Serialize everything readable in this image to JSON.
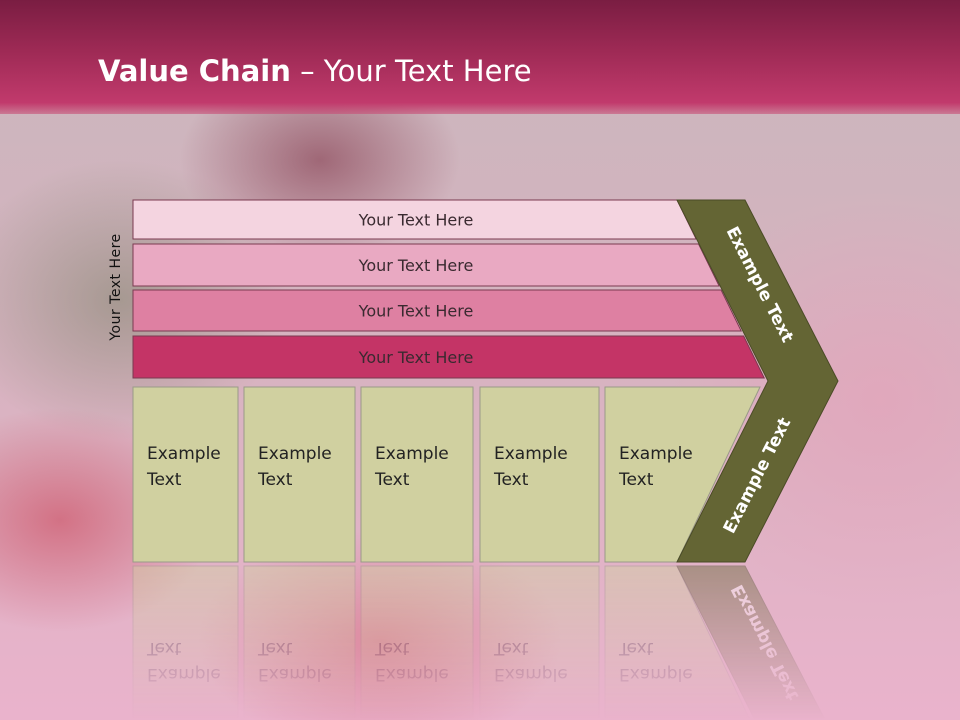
{
  "slide": {
    "title_bold": "Value Chain",
    "title_rest": " – Your Text Here",
    "side_label": "Your Text Here"
  },
  "rows": [
    {
      "label": "Your Text Here",
      "color": "#f4d4e0"
    },
    {
      "label": "Your Text Here",
      "color": "#e9a9c2"
    },
    {
      "label": "Your Text Here",
      "color": "#de80a2"
    },
    {
      "label": "Your Text Here",
      "color": "#c43466"
    }
  ],
  "columns": [
    {
      "line1": "Example",
      "line2": "Text"
    },
    {
      "line1": "Example",
      "line2": "Text"
    },
    {
      "line1": "Example",
      "line2": "Text"
    },
    {
      "line1": "Example",
      "line2": "Text"
    },
    {
      "line1": "Example",
      "line2": "Text"
    }
  ],
  "chevron": {
    "upper_label": "Example Text",
    "lower_label": "Example Text",
    "color": "#646534"
  },
  "colors": {
    "column_fill": "#d0d0a0",
    "header": "#a42d5a"
  }
}
